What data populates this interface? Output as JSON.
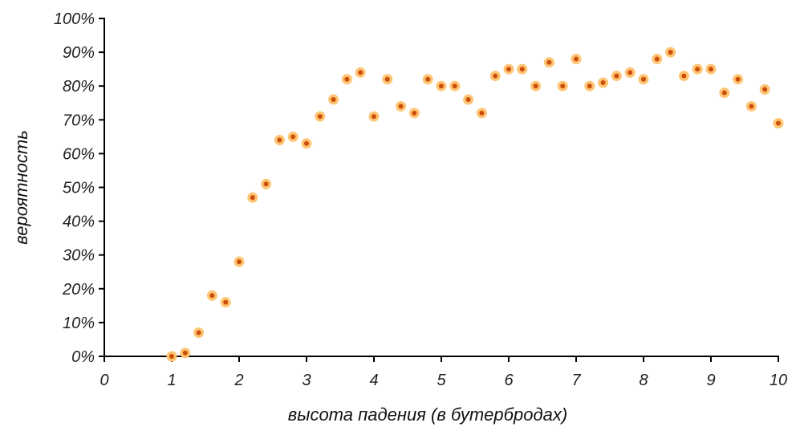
{
  "chart_data": {
    "type": "scatter",
    "xlabel": "высота падения (в бутербродах)",
    "ylabel": "вероятность",
    "xlim": [
      0,
      10
    ],
    "ylim": [
      0,
      100
    ],
    "x_ticks": [
      "0",
      "1",
      "2",
      "3",
      "4",
      "5",
      "6",
      "7",
      "8",
      "9",
      "10"
    ],
    "y_ticks": [
      "0%",
      "10%",
      "20%",
      "30%",
      "40%",
      "50%",
      "60%",
      "70%",
      "80%",
      "90%",
      "100%"
    ],
    "grid": false,
    "colors": {
      "point_fill": "#cc4e0a",
      "point_halo": "#fdc473",
      "axis": "#000000"
    },
    "series": [
      {
        "points": [
          [
            1.0,
            0
          ],
          [
            1.2,
            1
          ],
          [
            1.4,
            7
          ],
          [
            1.6,
            18
          ],
          [
            1.8,
            16
          ],
          [
            2.0,
            28
          ],
          [
            2.2,
            47
          ],
          [
            2.4,
            51
          ],
          [
            2.6,
            64
          ],
          [
            2.8,
            65
          ],
          [
            3.0,
            63
          ],
          [
            3.2,
            71
          ],
          [
            3.4,
            76
          ],
          [
            3.6,
            82
          ],
          [
            3.8,
            84
          ],
          [
            4.0,
            71
          ],
          [
            4.2,
            82
          ],
          [
            4.4,
            74
          ],
          [
            4.6,
            72
          ],
          [
            4.8,
            82
          ],
          [
            5.0,
            80
          ],
          [
            5.2,
            80
          ],
          [
            5.4,
            76
          ],
          [
            5.6,
            72
          ],
          [
            5.8,
            83
          ],
          [
            6.0,
            85
          ],
          [
            6.2,
            85
          ],
          [
            6.4,
            80
          ],
          [
            6.6,
            87
          ],
          [
            6.8,
            80
          ],
          [
            7.0,
            88
          ],
          [
            7.2,
            80
          ],
          [
            7.4,
            81
          ],
          [
            7.6,
            83
          ],
          [
            7.8,
            84
          ],
          [
            8.0,
            82
          ],
          [
            8.2,
            88
          ],
          [
            8.4,
            90
          ],
          [
            8.6,
            83
          ],
          [
            8.8,
            85
          ],
          [
            9.0,
            85
          ],
          [
            9.2,
            78
          ],
          [
            9.4,
            82
          ],
          [
            9.6,
            74
          ],
          [
            9.8,
            79
          ],
          [
            10.0,
            69
          ]
        ]
      }
    ]
  }
}
